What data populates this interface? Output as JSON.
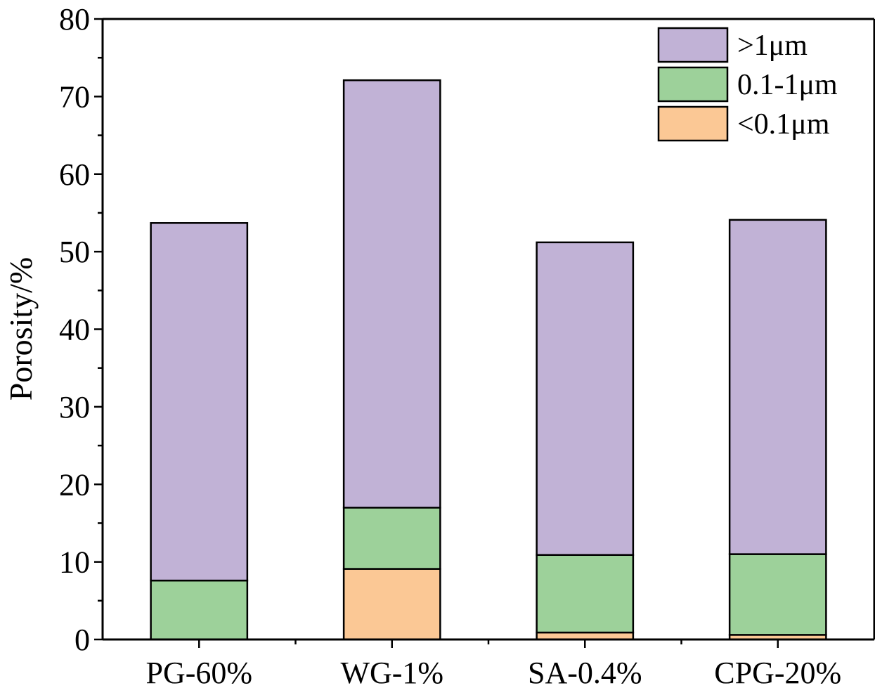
{
  "chart_data": {
    "type": "bar",
    "stacked": true,
    "title": "",
    "xlabel": "",
    "ylabel": "Porosity/%",
    "ylim": [
      0,
      80
    ],
    "y_major_ticks": [
      0,
      10,
      20,
      30,
      40,
      50,
      60,
      70,
      80
    ],
    "y_minor_step": 5,
    "grid": false,
    "legend_position": "top-right",
    "categories": [
      "PG-60%",
      "WG-1%",
      "SA-0.4%",
      "CPG-20%"
    ],
    "series": [
      {
        "name": "<0.1μm",
        "color": "#FBC895",
        "values": [
          0.0,
          9.1,
          0.9,
          0.6
        ]
      },
      {
        "name": "0.1-1μm",
        "color": "#9DD19A",
        "values": [
          7.6,
          7.9,
          10.0,
          10.4
        ]
      },
      {
        "name": ">1μm",
        "color": "#C1B2D6",
        "values": [
          46.1,
          55.1,
          40.3,
          43.1
        ]
      }
    ],
    "legend_order": [
      2,
      1,
      0
    ]
  }
}
